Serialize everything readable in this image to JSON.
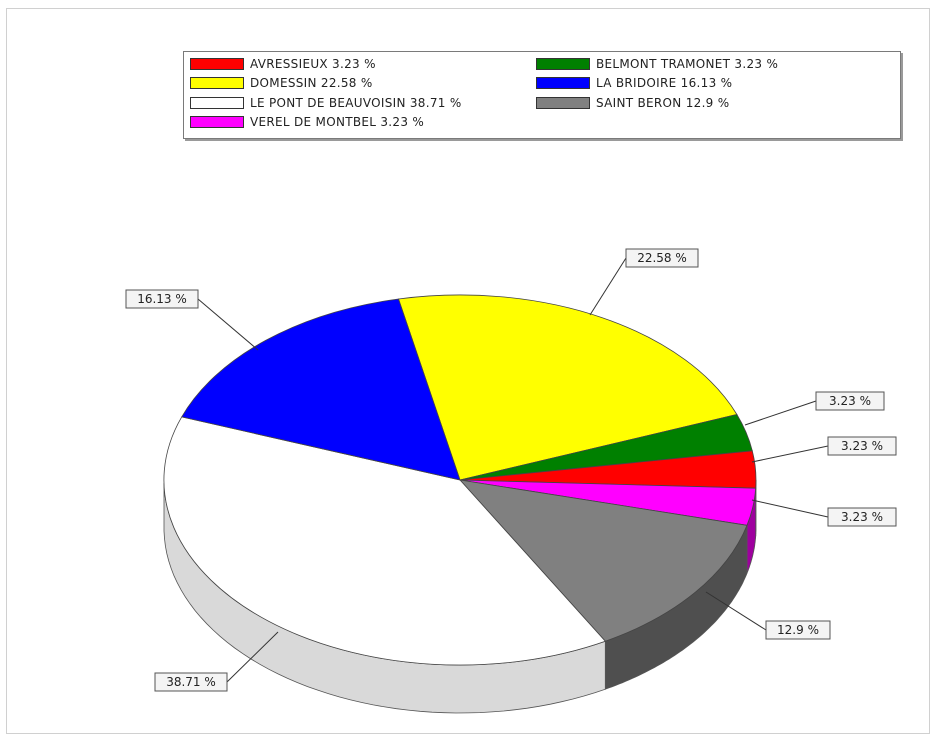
{
  "chart_data": {
    "type": "pie",
    "style": "3d",
    "legend_position": "top",
    "slices": [
      {
        "label": "AVRESSIEUX",
        "value": 3.23,
        "legend_text": "AVRESSIEUX  3.23 %",
        "data_label": "3.23 %",
        "color": "#ff0000"
      },
      {
        "label": "BELMONT TRAMONET",
        "value": 3.23,
        "legend_text": "BELMONT TRAMONET  3.23 %",
        "data_label": "3.23 %",
        "color": "#008000"
      },
      {
        "label": "DOMESSIN",
        "value": 22.58,
        "legend_text": "DOMESSIN  22.58 %",
        "data_label": "22.58 %",
        "color": "#ffff00"
      },
      {
        "label": "LA BRIDOIRE",
        "value": 16.13,
        "legend_text": "LA BRIDOIRE  16.13 %",
        "data_label": "16.13 %",
        "color": "#0000ff"
      },
      {
        "label": "LE PONT DE BEAUVOISIN",
        "value": 38.71,
        "legend_text": "LE PONT DE BEAUVOISIN  38.71 %",
        "data_label": "38.71 %",
        "color": "#ffffff"
      },
      {
        "label": "SAINT BERON",
        "value": 12.9,
        "legend_text": "SAINT BERON  12.9 %",
        "data_label": "12.9 %",
        "color": "#808080"
      },
      {
        "label": "VEREL DE MONTBEL",
        "value": 3.23,
        "legend_text": "VEREL DE MONTBEL  3.23 %",
        "data_label": "3.23 %",
        "color": "#ff00ff"
      }
    ]
  }
}
